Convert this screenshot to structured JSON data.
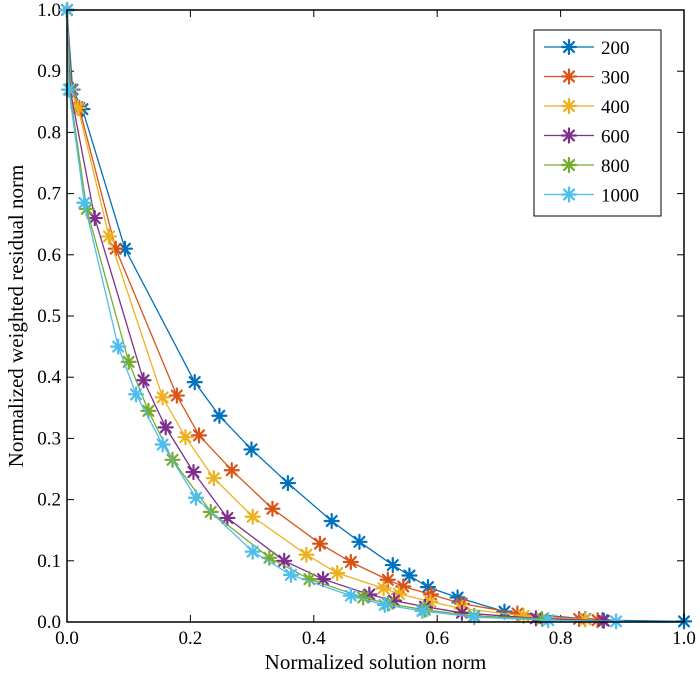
{
  "chart_data": {
    "type": "line",
    "title": "",
    "xlabel": "Normalized solution norm",
    "ylabel": "Normalized weighted residual norm",
    "xlim": [
      0,
      1
    ],
    "ylim": [
      0,
      1
    ],
    "xticks": [
      0,
      0.2,
      0.4,
      0.6,
      0.8,
      1
    ],
    "yticks": [
      0,
      0.1,
      0.2,
      0.3,
      0.4,
      0.5,
      0.6,
      0.7,
      0.8,
      0.9,
      1
    ],
    "xtick_labels": [
      "0.0",
      "0.2",
      "0.4",
      "0.6",
      "0.8",
      "1.0"
    ],
    "ytick_labels": [
      "0.0",
      "0.1",
      "0.2",
      "0.3",
      "0.4",
      "0.5",
      "0.6",
      "0.7",
      "0.8",
      "0.9",
      "1.0"
    ],
    "legend_position": "top-right",
    "marker": "asterisk",
    "series": [
      {
        "name": "200",
        "color": "#0072BD",
        "x": [
          0,
          0.009,
          0.025,
          0.094,
          0.207,
          0.247,
          0.299,
          0.358,
          0.429,
          0.474,
          0.528,
          0.555,
          0.585,
          0.633,
          0.709,
          0.84,
          0.868,
          1.0
        ],
        "y": [
          1.0,
          0.87,
          0.838,
          0.61,
          0.392,
          0.337,
          0.282,
          0.227,
          0.165,
          0.131,
          0.093,
          0.076,
          0.057,
          0.04,
          0.017,
          0.005,
          0.003,
          0.001
        ]
      },
      {
        "name": "300",
        "color": "#D95319",
        "x": [
          0,
          0.007,
          0.02,
          0.079,
          0.178,
          0.214,
          0.267,
          0.333,
          0.41,
          0.46,
          0.52,
          0.545,
          0.59,
          0.64,
          0.73,
          0.83,
          0.86
        ],
        "y": [
          1.0,
          0.87,
          0.84,
          0.61,
          0.37,
          0.305,
          0.248,
          0.185,
          0.128,
          0.098,
          0.069,
          0.058,
          0.045,
          0.03,
          0.014,
          0.005,
          0.003
        ]
      },
      {
        "name": "400",
        "color": "#EDB120",
        "x": [
          0,
          0.006,
          0.018,
          0.068,
          0.155,
          0.192,
          0.238,
          0.301,
          0.388,
          0.438,
          0.513,
          0.538,
          0.589,
          0.64,
          0.74,
          0.84
        ],
        "y": [
          1.0,
          0.87,
          0.84,
          0.63,
          0.367,
          0.302,
          0.235,
          0.172,
          0.11,
          0.08,
          0.055,
          0.046,
          0.033,
          0.022,
          0.01,
          0.004
        ]
      },
      {
        "name": "600",
        "color": "#7E2F8E",
        "x": [
          0,
          0.005,
          0.045,
          0.124,
          0.16,
          0.205,
          0.26,
          0.352,
          0.415,
          0.49,
          0.53,
          0.58,
          0.64,
          0.76,
          0.87
        ],
        "y": [
          1.0,
          0.87,
          0.66,
          0.395,
          0.318,
          0.245,
          0.17,
          0.1,
          0.07,
          0.045,
          0.035,
          0.025,
          0.015,
          0.006,
          0.002
        ]
      },
      {
        "name": "800",
        "color": "#77AC30",
        "x": [
          0,
          0.004,
          0.032,
          0.1,
          0.132,
          0.171,
          0.233,
          0.328,
          0.393,
          0.48,
          0.52,
          0.58,
          0.66,
          0.77
        ],
        "y": [
          1.0,
          0.87,
          0.675,
          0.425,
          0.345,
          0.265,
          0.18,
          0.105,
          0.07,
          0.04,
          0.03,
          0.02,
          0.01,
          0.005
        ]
      },
      {
        "name": "1000",
        "color": "#4DBEEE",
        "x": [
          0,
          0.003,
          0.028,
          0.083,
          0.112,
          0.155,
          0.209,
          0.301,
          0.363,
          0.46,
          0.515,
          0.576,
          0.66,
          0.78,
          0.89
        ],
        "y": [
          1.0,
          0.87,
          0.685,
          0.45,
          0.372,
          0.29,
          0.203,
          0.115,
          0.077,
          0.043,
          0.028,
          0.018,
          0.008,
          0.003,
          0.001
        ]
      }
    ]
  }
}
